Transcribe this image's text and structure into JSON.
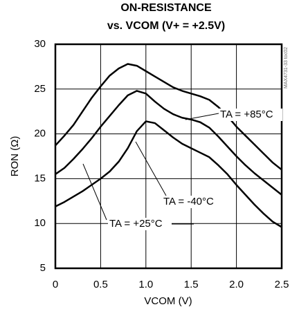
{
  "chart_data": {
    "type": "line",
    "title": "ON-RESISTANCE",
    "subtitle": "vs. VCOM (V+ = +2.5V)",
    "xlabel": "VCOM (V)",
    "ylabel": "RON (Ω)",
    "watermark": "MAX4731-33 toc02",
    "x": [
      0,
      0.1,
      0.2,
      0.3,
      0.4,
      0.5,
      0.6,
      0.7,
      0.8,
      0.9,
      1.0,
      1.1,
      1.2,
      1.3,
      1.4,
      1.5,
      1.6,
      1.7,
      1.8,
      1.9,
      2.0,
      2.1,
      2.2,
      2.3,
      2.4,
      2.5
    ],
    "series": [
      {
        "name": "TA = +85°C",
        "color": "#000000",
        "values": [
          18.7,
          19.8,
          21,
          22.5,
          24,
          25.3,
          26.5,
          27.3,
          27.8,
          27.6,
          27,
          26.4,
          25.8,
          25.2,
          24.8,
          24.5,
          24.2,
          23.8,
          23,
          22,
          20.8,
          19.8,
          18.8,
          17.8,
          16.8,
          16.0
        ]
      },
      {
        "name": "TA = +25°C",
        "color": "#000000",
        "values": [
          15.5,
          16.2,
          17.2,
          18.3,
          19.5,
          20.8,
          22,
          23.2,
          24.3,
          24.8,
          24.5,
          23.6,
          22.8,
          22.2,
          21.8,
          21.6,
          21.3,
          20.7,
          19.7,
          18.6,
          17.5,
          16.5,
          15.6,
          14.8,
          14,
          13.2
        ]
      },
      {
        "name": "TA = -40°C",
        "color": "#000000",
        "values": [
          11.9,
          12.4,
          13,
          13.6,
          14.3,
          15,
          15.8,
          16.9,
          18.4,
          20.3,
          21.4,
          21.2,
          20.4,
          19.6,
          18.9,
          18.4,
          17.9,
          17.4,
          16.5,
          15.5,
          14.3,
          13.2,
          12.1,
          11.1,
          10.2,
          9.6
        ]
      }
    ],
    "xlim": [
      0,
      2.5
    ],
    "xticks": [
      0,
      0.5,
      {
        "value": 1,
        "label": "1.0"
      },
      1.5,
      {
        "value": 2,
        "label": "2.0"
      },
      2.5
    ],
    "ylim": [
      5,
      30
    ],
    "yticks": [
      5,
      10,
      15,
      20,
      25,
      30
    ],
    "grid": true
  }
}
